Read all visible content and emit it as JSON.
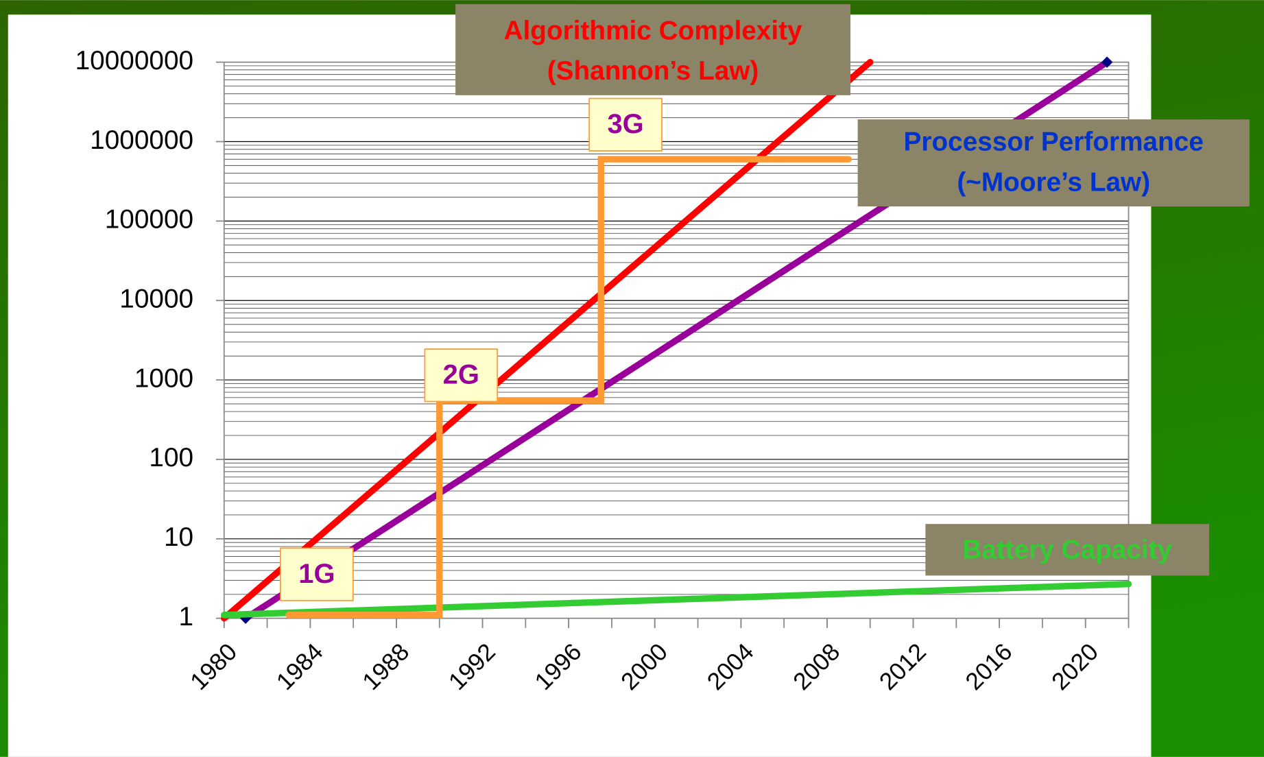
{
  "chart_data": {
    "type": "line",
    "xlim": [
      1980,
      2022
    ],
    "xticks": [
      1980,
      1984,
      1988,
      1992,
      1996,
      2000,
      2004,
      2008,
      2012,
      2016,
      2020
    ],
    "ylim": [
      1,
      10000000
    ],
    "yticks": [
      1,
      10,
      100,
      1000,
      10000,
      100000,
      1000000,
      10000000
    ],
    "log_y": true,
    "grid": true,
    "series": [
      {
        "label_lines": [
          "Processor Performance",
          "(~Moore’s Law)"
        ],
        "color": "#990099",
        "label_color": "#0033cc",
        "marker_color": "#000080",
        "x": [
          1981,
          2021
        ],
        "values": [
          1,
          10000000
        ]
      },
      {
        "label_lines": [
          "Algorithmic Complexity",
          "(Shannon’s Law)"
        ],
        "color": "#ff0000",
        "label_color": "#ff0000",
        "x": [
          1980,
          2010
        ],
        "values": [
          1,
          10000000
        ]
      },
      {
        "label_lines": [
          "Battery Capacity"
        ],
        "color": "#33cc33",
        "label_color": "#33cc33",
        "x": [
          1980,
          2022
        ],
        "values": [
          1.1,
          2.7
        ]
      },
      {
        "step_labels": [
          "1G",
          "2G",
          "3G"
        ],
        "color": "#ff9933",
        "label_color": "#990099",
        "x": [
          1983,
          1990,
          1990,
          1997.5,
          1997.5,
          2009
        ],
        "values": [
          1.1,
          1.1,
          550,
          550,
          600000,
          600000
        ]
      }
    ]
  }
}
